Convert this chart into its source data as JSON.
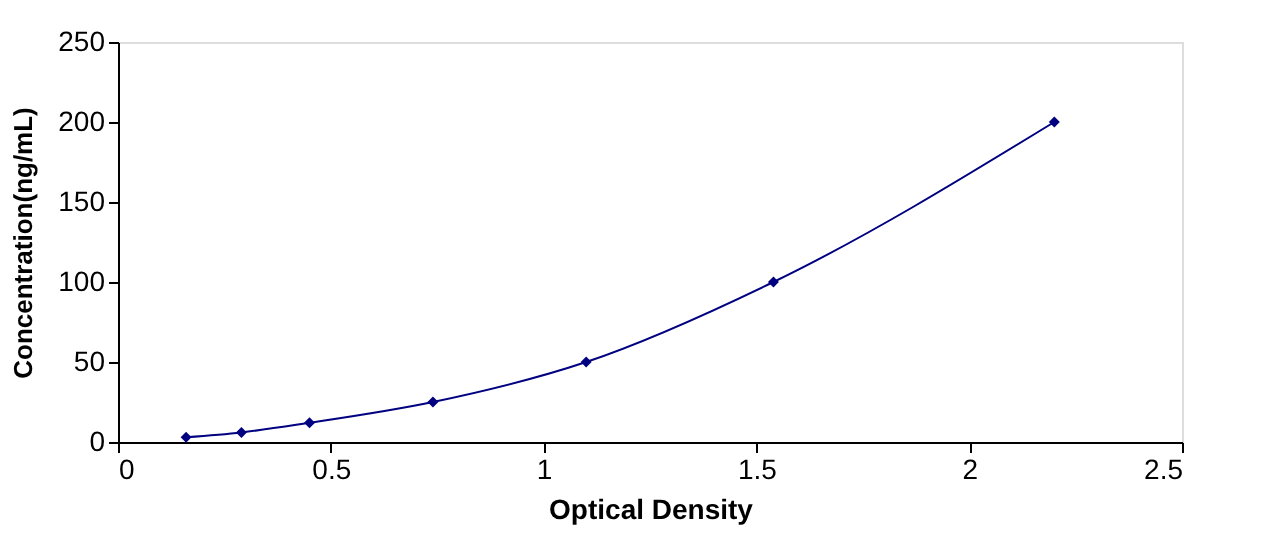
{
  "chart_data": {
    "type": "line",
    "xlabel": "Optical Density",
    "ylabel": "Concentration(ng/mL)",
    "x": [
      0.16,
      0.29,
      0.45,
      0.74,
      1.1,
      1.54,
      2.2
    ],
    "series": [
      {
        "color": "#000080",
        "values": [
          3,
          6,
          12,
          25,
          50,
          100,
          200
        ]
      }
    ],
    "xlim": [
      0,
      2.5
    ],
    "xticks": [
      0,
      0.5,
      1,
      1.5,
      2,
      2.5
    ],
    "ylim": [
      0,
      250
    ],
    "yticks": [
      0,
      50,
      100,
      150,
      200,
      250
    ],
    "marker": "diamond",
    "line_style": "solid",
    "grid": false
  }
}
